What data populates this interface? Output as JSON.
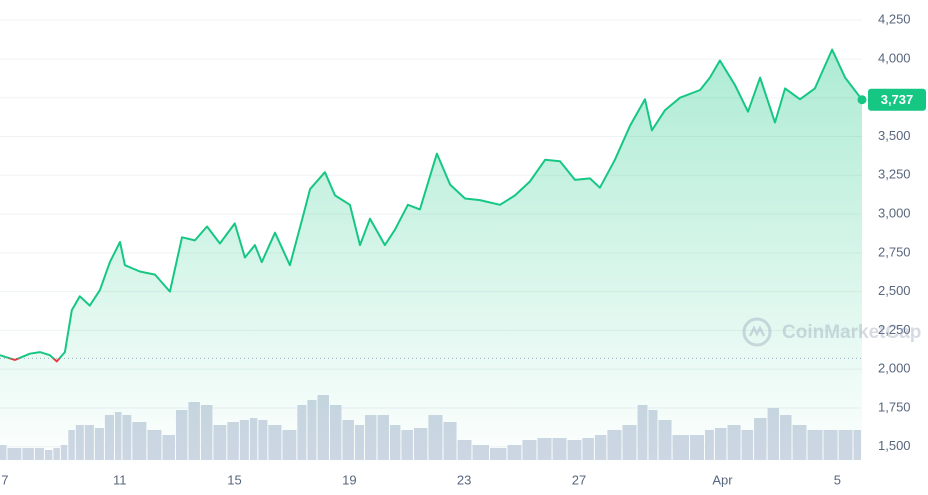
{
  "chart_data": {
    "type": "line",
    "watermark": "CoinMarketCap",
    "x": [
      6.83,
      7.35,
      7.87,
      8.22,
      8.57,
      8.81,
      9.09,
      9.33,
      9.61,
      9.96,
      10.31,
      10.66,
      11.01,
      11.18,
      11.7,
      12.23,
      12.75,
      13.17,
      13.62,
      14.04,
      14.49,
      15.01,
      15.36,
      15.71,
      15.95,
      16.41,
      16.93,
      17.45,
      17.63,
      18.15,
      18.5,
      19.02,
      19.37,
      19.72,
      20.24,
      20.59,
      21.04,
      21.46,
      22.05,
      22.51,
      23.03,
      23.55,
      24.25,
      24.77,
      25.29,
      25.82,
      26.34,
      26.86,
      27.38,
      27.73,
      28.25,
      28.78,
      29.3,
      29.54,
      30.0,
      30.52,
      31.22,
      31.56,
      31.91,
      32.44,
      32.89,
      33.31,
      33.83,
      34.18,
      34.7,
      35.22,
      35.82,
      36.27,
      36.86
    ],
    "series": [
      {
        "name": "Price",
        "color": "#16c784",
        "down_color": "#ea3943",
        "values": [
          2090,
          2060,
          2100,
          2110,
          2090,
          2050,
          2110,
          2380,
          2470,
          2410,
          2510,
          2690,
          2820,
          2670,
          2630,
          2610,
          2500,
          2850,
          2830,
          2920,
          2810,
          2940,
          2720,
          2800,
          2690,
          2880,
          2670,
          3030,
          3160,
          3270,
          3120,
          3060,
          2800,
          2970,
          2800,
          2900,
          3060,
          3030,
          3390,
          3190,
          3100,
          3090,
          3060,
          3120,
          3210,
          3350,
          3340,
          3220,
          3230,
          3170,
          3350,
          3570,
          3740,
          3540,
          3670,
          3750,
          3800,
          3880,
          3990,
          3830,
          3660,
          3880,
          3590,
          3810,
          3740,
          3810,
          4060,
          3880,
          3737
        ],
        "value_labels": [
          null,
          null,
          null,
          null,
          null,
          null,
          null,
          null,
          null,
          null,
          null,
          null,
          null,
          null,
          null,
          null,
          null,
          null,
          null,
          null,
          null,
          null,
          null,
          null,
          null,
          null,
          null,
          null,
          null,
          null,
          null,
          null,
          null,
          null,
          null,
          null,
          null,
          null,
          null,
          null,
          null,
          null,
          null,
          null,
          null,
          null,
          null,
          null,
          null,
          null,
          null,
          null,
          null,
          null,
          null,
          null,
          null,
          null,
          null,
          null,
          null,
          null,
          null,
          null,
          null,
          null,
          null,
          null,
          "3,737"
        ]
      },
      {
        "name": "Volume",
        "color": "#cfd6e4",
        "values": [
          15,
          12,
          12,
          12,
          10,
          12,
          15,
          30,
          35,
          35,
          32,
          45,
          48,
          45,
          38,
          30,
          25,
          50,
          58,
          55,
          35,
          38,
          40,
          42,
          40,
          35,
          30,
          55,
          60,
          65,
          55,
          40,
          35,
          45,
          45,
          35,
          30,
          32,
          45,
          38,
          20,
          15,
          12,
          15,
          20,
          22,
          22,
          20,
          22,
          25,
          30,
          35,
          55,
          50,
          40,
          25,
          25,
          30,
          32,
          35,
          30,
          42,
          52,
          45,
          35,
          30,
          30,
          30,
          30
        ]
      }
    ],
    "baseline": 2070,
    "xlim": [
      6.83,
      36.86
    ],
    "xticks": [
      7,
      11,
      15,
      19,
      23,
      27,
      {
        "value": 32,
        "label": "Apr"
      },
      {
        "value": 36,
        "label": "5"
      }
    ],
    "ylim": [
      1350,
      4380
    ],
    "yticks": [
      {
        "value": 1500,
        "label": "1,500"
      },
      {
        "value": 1750,
        "label": "1,750"
      },
      {
        "value": 2000,
        "label": "2,000"
      },
      {
        "value": 2250,
        "label": "2,250"
      },
      {
        "value": 2500,
        "label": "2,500"
      },
      {
        "value": 2750,
        "label": "2,750"
      },
      {
        "value": 3000,
        "label": "3,000"
      },
      {
        "value": 3250,
        "label": "3,250"
      },
      {
        "value": 3500,
        "label": "3,500"
      },
      {
        "value": 3750,
        "label": "3,750"
      },
      {
        "value": 4000,
        "label": "4,000"
      },
      {
        "value": 4250,
        "label": "4,250"
      }
    ],
    "grid": true
  }
}
